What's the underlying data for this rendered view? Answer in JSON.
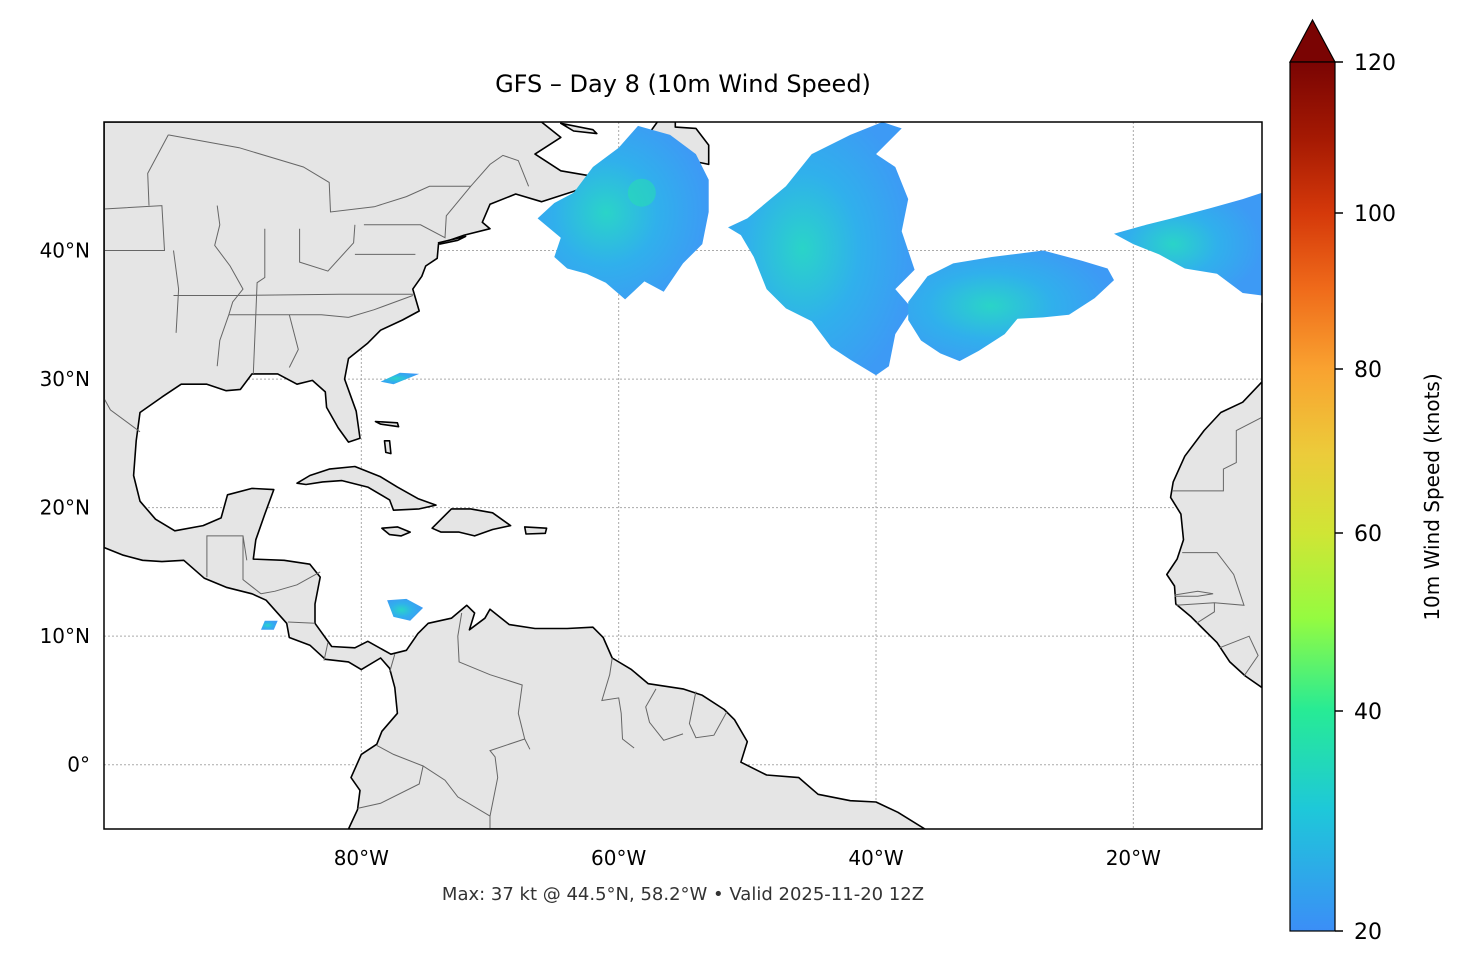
{
  "title": "GFS – Day 8 (10m Wind Speed)",
  "footer": "Max: 37 kt @ 44.5°N, 58.2°W • Valid 2025-11-20 12Z",
  "map": {
    "extent": {
      "lon": [
        -100,
        -10
      ],
      "lat": [
        -5,
        50
      ]
    },
    "lon_ticks": [
      {
        "value": -80,
        "label": "80°W"
      },
      {
        "value": -60,
        "label": "60°W"
      },
      {
        "value": -40,
        "label": "40°W"
      },
      {
        "value": -20,
        "label": "20°W"
      }
    ],
    "lat_ticks": [
      {
        "value": 40,
        "label": "40°N"
      },
      {
        "value": 30,
        "label": "30°N"
      },
      {
        "value": 20,
        "label": "20°N"
      },
      {
        "value": 10,
        "label": "10°N"
      },
      {
        "value": 0,
        "label": "0°"
      }
    ],
    "gridlines": true,
    "land_color": "#e5e5e5",
    "coast_color": "#000000",
    "border_color": "#666666"
  },
  "colorbar": {
    "label": "10m Wind Speed (knots)",
    "range": [
      20,
      120
    ],
    "extend": "max",
    "colormap": "turbo",
    "ticks": [
      {
        "value": 120,
        "label": "120"
      },
      {
        "value": 100,
        "label": "100"
      },
      {
        "value": 80,
        "label": "80"
      },
      {
        "value": 60,
        "label": "60"
      },
      {
        "value": 40,
        "label": "40"
      },
      {
        "value": 20,
        "label": "20"
      }
    ]
  },
  "max_wind": {
    "value_kt": 37,
    "lat": 44.5,
    "lon": -58.2
  }
}
